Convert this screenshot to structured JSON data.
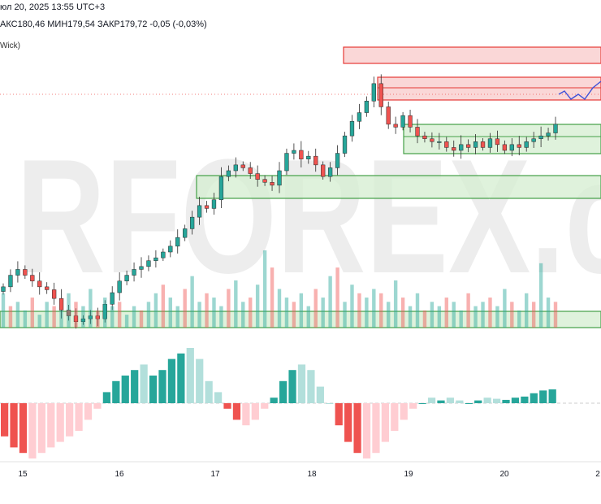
{
  "header": {
    "datetime": "юл 20, 2025 13:55 UTC+3",
    "ohlc": "АКС180,46  МИН179,54  ЗАКР179,72  -0,05 (-0,03%)",
    "indicator_label": "Wick)"
  },
  "watermark": "RFOREX.c",
  "colors": {
    "up": "#26a69a",
    "down": "#ef5350",
    "up_light": "#b2dfdb",
    "down_light": "#ffcdd2",
    "zone_red_fill": "#f8c9c9",
    "zone_red_border": "#e53935",
    "zone_green_fill": "#d4edd0",
    "zone_green_border": "#43a047",
    "projection": "#3f51d8"
  },
  "chart_data": {
    "type": "candlestick",
    "x_ticks": [
      "15",
      "16",
      "17",
      "18",
      "19",
      "20",
      "2"
    ],
    "price_range": [
      177.4,
      181.6
    ],
    "close_levels": [
      177.5,
      177.7,
      177.8,
      177.7,
      177.6,
      177.5,
      177.45,
      177.3,
      177.1,
      177.0,
      176.9,
      176.95,
      177.0,
      176.95,
      177.2,
      177.4,
      177.6,
      177.7,
      177.8,
      177.85,
      177.95,
      178.0,
      178.1,
      178.2,
      178.35,
      178.5,
      178.7,
      178.9,
      178.85,
      179.0,
      179.4,
      179.5,
      179.6,
      179.55,
      179.45,
      179.35,
      179.3,
      179.25,
      179.5,
      179.8,
      179.85,
      179.7,
      179.75,
      179.6,
      179.4,
      179.55,
      179.8,
      180.1,
      180.35,
      180.5,
      180.7,
      181.0,
      180.6,
      180.3,
      180.25,
      180.45,
      180.25,
      180.1,
      180.05,
      180.0,
      180.0,
      179.9,
      179.85,
      179.95,
      179.9,
      180.0,
      179.9,
      180.05,
      179.95,
      179.85,
      179.95,
      179.9,
      180.0,
      180.05,
      180.1,
      180.15,
      180.3
    ],
    "volumes": [
      8,
      5,
      6,
      4,
      7,
      3,
      6,
      5,
      4,
      8,
      6,
      5,
      9,
      4,
      7,
      5,
      6,
      3,
      5,
      4,
      6,
      8,
      10,
      7,
      5,
      9,
      12,
      6,
      8,
      7,
      5,
      9,
      11,
      6,
      7,
      10,
      18,
      14,
      9,
      7,
      6,
      8,
      5,
      9,
      7,
      12,
      14,
      6,
      10,
      8,
      7,
      9,
      8,
      6,
      11,
      7,
      5,
      8,
      4,
      6,
      5,
      7,
      6,
      4,
      8,
      5,
      6,
      7,
      5,
      9,
      6,
      4,
      8,
      6,
      15,
      7,
      6
    ],
    "histogram": [
      -6,
      -8,
      -9,
      -10,
      -9,
      -8,
      -7,
      -6,
      -5,
      -3,
      -1,
      2,
      4,
      5,
      6,
      7,
      5,
      6,
      8,
      9,
      10,
      8,
      4,
      2,
      -1,
      -3,
      -4,
      -3,
      -1,
      1,
      4,
      6,
      7,
      6,
      3,
      0,
      -4,
      -7,
      -9,
      -10,
      -9,
      -7,
      -5,
      -3,
      -1,
      0,
      1,
      0.5,
      1,
      0.5,
      0,
      0.5,
      1,
      0.8,
      0.6,
      1,
      1.2,
      1.8,
      2.3,
      2.5
    ]
  }
}
